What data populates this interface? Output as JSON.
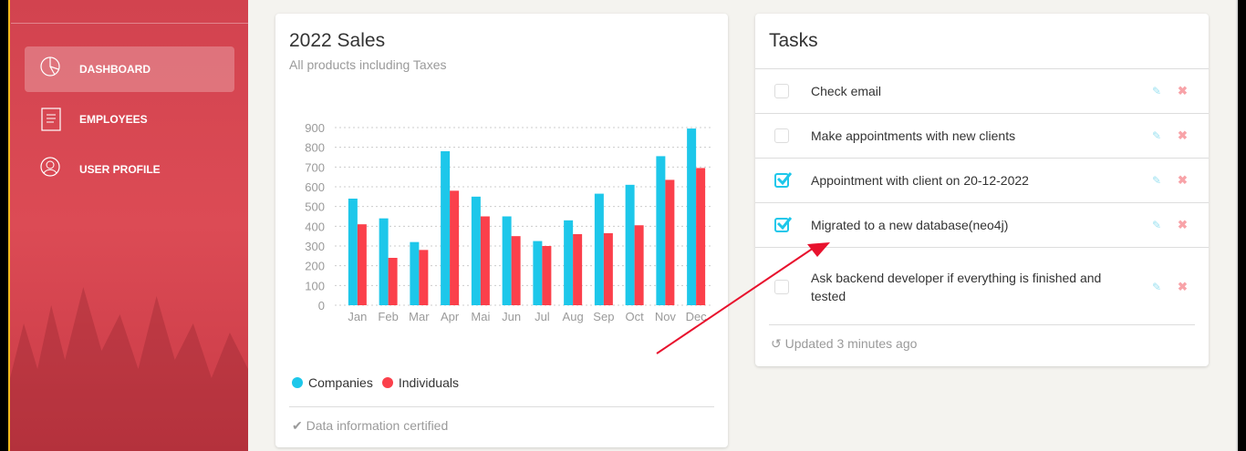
{
  "sidebar": {
    "items": [
      {
        "label": "DASHBOARD",
        "icon": "pie-chart-icon",
        "active": true
      },
      {
        "label": "EMPLOYEES",
        "icon": "clipboard-icon"
      },
      {
        "label": "USER PROFILE",
        "icon": "user-icon"
      }
    ]
  },
  "sales": {
    "title": "2022 Sales",
    "subtitle": "All products including Taxes",
    "legend": [
      "Companies",
      "Individuals"
    ],
    "footer": "Data information certified",
    "footer_icon": "check-icon"
  },
  "chart_data": {
    "type": "bar",
    "categories": [
      "Jan",
      "Feb",
      "Mar",
      "Apr",
      "Mai",
      "Jun",
      "Jul",
      "Aug",
      "Sep",
      "Oct",
      "Nov",
      "Dec"
    ],
    "series": [
      {
        "name": "Companies",
        "color": "#1dc7ea",
        "values": [
          540,
          440,
          320,
          780,
          550,
          450,
          325,
          430,
          565,
          610,
          755,
          895
        ]
      },
      {
        "name": "Individuals",
        "color": "#fb404b",
        "values": [
          410,
          240,
          280,
          580,
          450,
          350,
          300,
          360,
          365,
          405,
          635,
          695
        ]
      }
    ],
    "yticks": [
      0,
      100,
      200,
      300,
      400,
      500,
      600,
      700,
      800,
      900
    ],
    "ylim": [
      0,
      900
    ],
    "grid": true,
    "legend_placement": "bottom-left"
  },
  "tasks": {
    "title": "Tasks",
    "items": [
      {
        "text": "Check email",
        "checked": false
      },
      {
        "text": "Make appointments with new clients",
        "checked": false
      },
      {
        "text": "Appointment with client on 20-12-2022",
        "checked": true
      },
      {
        "text": "Migrated to a new database(neo4j)",
        "checked": true
      },
      {
        "text": "Ask backend developer if everything is finished and tested",
        "checked": false
      }
    ],
    "footer": "Updated 3 minutes ago",
    "footer_icon": "history-icon",
    "edit_icon": "edit-icon",
    "remove_icon": "close-icon"
  },
  "colors": {
    "accent": "#1dc7ea",
    "danger": "#fb404b",
    "sidebar": "#d8464f",
    "annotation": "#e8112d"
  }
}
